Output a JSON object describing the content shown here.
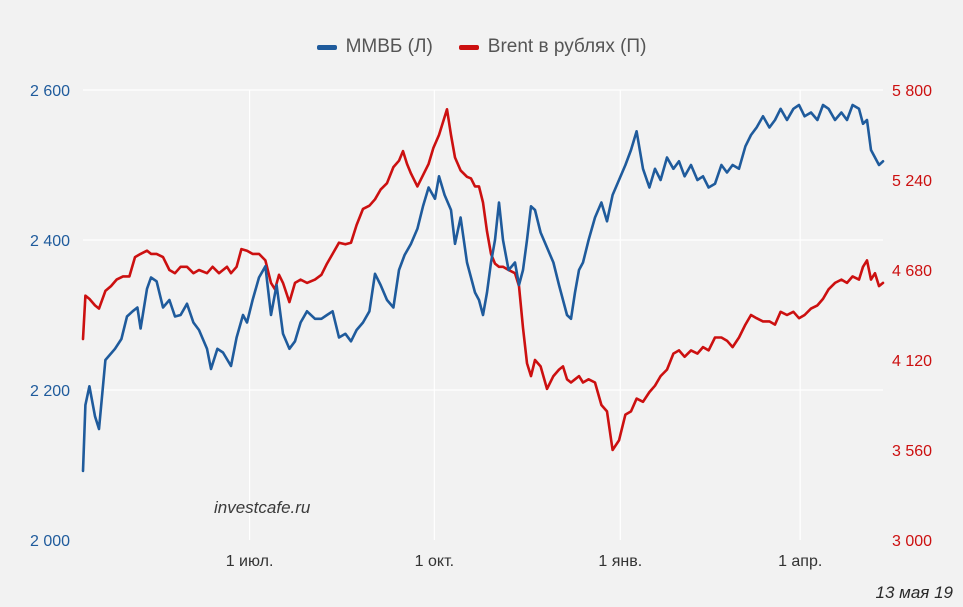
{
  "colors": {
    "background": "#f2f2f2",
    "micex": "#1f5b9c",
    "brent": "#cc1010",
    "grid": "#ffffff"
  },
  "footer": {
    "watermark": "investcafe.ru",
    "date": "13 мая 19"
  },
  "chart_data": {
    "type": "line",
    "legend_position": "top-center",
    "grid": true,
    "x_ticks": [
      "1 июл.",
      "1 окт.",
      "1 янв.",
      "1 апр."
    ],
    "x_tick_positions": [
      0.2082,
      0.4392,
      0.6716,
      0.8965
    ],
    "y_left": {
      "ticks": [
        "2 000",
        "2 200",
        "2 400",
        "2 600"
      ],
      "range": [
        2000,
        2600
      ]
    },
    "y_right": {
      "ticks": [
        "3 000",
        "3 560",
        "4 120",
        "4 680",
        "5 240",
        "5 800"
      ],
      "range": [
        3000,
        5800
      ]
    },
    "series": [
      {
        "name": "ММВБ (Л)",
        "axis": "left",
        "color": "#1f5b9c",
        "x": [
          0,
          0.003,
          0.008,
          0.015,
          0.02,
          0.028,
          0.04,
          0.048,
          0.055,
          0.062,
          0.068,
          0.072,
          0.08,
          0.085,
          0.092,
          0.1,
          0.108,
          0.115,
          0.122,
          0.13,
          0.138,
          0.145,
          0.155,
          0.16,
          0.168,
          0.175,
          0.185,
          0.192,
          0.2,
          0.205,
          0.212,
          0.22,
          0.228,
          0.235,
          0.242,
          0.25,
          0.258,
          0.265,
          0.272,
          0.28,
          0.29,
          0.298,
          0.305,
          0.312,
          0.32,
          0.328,
          0.335,
          0.342,
          0.35,
          0.358,
          0.365,
          0.372,
          0.38,
          0.388,
          0.395,
          0.402,
          0.41,
          0.418,
          0.425,
          0.432,
          0.44,
          0.445,
          0.452,
          0.46,
          0.465,
          0.472,
          0.48,
          0.485,
          0.49,
          0.495,
          0.5,
          0.505,
          0.51,
          0.515,
          0.52,
          0.525,
          0.532,
          0.54,
          0.545,
          0.55,
          0.555,
          0.56,
          0.565,
          0.572,
          0.58,
          0.588,
          0.595,
          0.6,
          0.605,
          0.61,
          0.615,
          0.62,
          0.625,
          0.632,
          0.64,
          0.648,
          0.655,
          0.662,
          0.67,
          0.678,
          0.685,
          0.692,
          0.7,
          0.708,
          0.715,
          0.722,
          0.73,
          0.738,
          0.745,
          0.752,
          0.76,
          0.768,
          0.775,
          0.782,
          0.79,
          0.798,
          0.805,
          0.812,
          0.82,
          0.828,
          0.835,
          0.842,
          0.85,
          0.858,
          0.865,
          0.872,
          0.88,
          0.888,
          0.895,
          0.902,
          0.91,
          0.918,
          0.925,
          0.932,
          0.94,
          0.948,
          0.955,
          0.962,
          0.97,
          0.975,
          0.98,
          0.985,
          0.99,
          0.995,
          1.0
        ],
        "values": [
          2092,
          2180,
          2205,
          2165,
          2148,
          2240,
          2255,
          2268,
          2298,
          2305,
          2310,
          2282,
          2335,
          2350,
          2345,
          2310,
          2320,
          2298,
          2300,
          2315,
          2290,
          2280,
          2255,
          2228,
          2255,
          2250,
          2232,
          2270,
          2300,
          2290,
          2320,
          2350,
          2365,
          2300,
          2340,
          2275,
          2255,
          2265,
          2290,
          2305,
          2295,
          2295,
          2300,
          2305,
          2270,
          2275,
          2265,
          2280,
          2290,
          2305,
          2355,
          2340,
          2320,
          2310,
          2360,
          2380,
          2395,
          2415,
          2445,
          2470,
          2455,
          2485,
          2460,
          2440,
          2395,
          2430,
          2370,
          2350,
          2330,
          2320,
          2300,
          2330,
          2370,
          2400,
          2450,
          2400,
          2360,
          2370,
          2340,
          2360,
          2400,
          2445,
          2440,
          2410,
          2390,
          2370,
          2340,
          2320,
          2300,
          2295,
          2330,
          2360,
          2370,
          2400,
          2430,
          2450,
          2425,
          2460,
          2480,
          2500,
          2520,
          2545,
          2495,
          2470,
          2495,
          2480,
          2510,
          2495,
          2505,
          2485,
          2500,
          2480,
          2485,
          2470,
          2475,
          2500,
          2490,
          2500,
          2495,
          2525,
          2540,
          2550,
          2565,
          2550,
          2560,
          2575,
          2560,
          2575,
          2580,
          2565,
          2570,
          2560,
          2580,
          2575,
          2560,
          2570,
          2560,
          2580,
          2575,
          2555,
          2560,
          2520,
          2510,
          2500,
          2505
        ]
      },
      {
        "name": "Brent в рублях (П)",
        "axis": "right",
        "color": "#cc1010",
        "x": [
          0,
          0.003,
          0.008,
          0.015,
          0.02,
          0.028,
          0.035,
          0.042,
          0.05,
          0.058,
          0.065,
          0.072,
          0.08,
          0.085,
          0.092,
          0.1,
          0.108,
          0.115,
          0.122,
          0.13,
          0.138,
          0.145,
          0.155,
          0.162,
          0.17,
          0.175,
          0.18,
          0.185,
          0.192,
          0.198,
          0.205,
          0.212,
          0.22,
          0.228,
          0.235,
          0.24,
          0.245,
          0.25,
          0.258,
          0.265,
          0.272,
          0.28,
          0.29,
          0.298,
          0.305,
          0.312,
          0.32,
          0.328,
          0.335,
          0.342,
          0.35,
          0.358,
          0.365,
          0.372,
          0.38,
          0.388,
          0.395,
          0.4,
          0.405,
          0.41,
          0.418,
          0.425,
          0.432,
          0.438,
          0.445,
          0.45,
          0.455,
          0.46,
          0.465,
          0.472,
          0.48,
          0.485,
          0.49,
          0.495,
          0.5,
          0.505,
          0.51,
          0.515,
          0.52,
          0.525,
          0.532,
          0.54,
          0.545,
          0.55,
          0.555,
          0.56,
          0.565,
          0.572,
          0.58,
          0.588,
          0.595,
          0.6,
          0.605,
          0.61,
          0.615,
          0.62,
          0.625,
          0.632,
          0.64,
          0.648,
          0.655,
          0.662,
          0.67,
          0.678,
          0.685,
          0.692,
          0.7,
          0.708,
          0.715,
          0.722,
          0.73,
          0.738,
          0.745,
          0.752,
          0.76,
          0.768,
          0.775,
          0.782,
          0.79,
          0.798,
          0.805,
          0.812,
          0.82,
          0.828,
          0.835,
          0.842,
          0.85,
          0.858,
          0.865,
          0.872,
          0.88,
          0.888,
          0.895,
          0.902,
          0.91,
          0.918,
          0.925,
          0.932,
          0.94,
          0.948,
          0.955,
          0.962,
          0.97,
          0.975,
          0.98,
          0.985,
          0.99,
          0.995,
          1.0
        ],
        "values": [
          4250,
          4520,
          4500,
          4460,
          4440,
          4550,
          4580,
          4620,
          4640,
          4640,
          4760,
          4780,
          4800,
          4780,
          4780,
          4760,
          4680,
          4660,
          4700,
          4700,
          4660,
          4680,
          4660,
          4700,
          4660,
          4680,
          4700,
          4660,
          4700,
          4810,
          4800,
          4780,
          4780,
          4740,
          4600,
          4560,
          4650,
          4600,
          4480,
          4600,
          4620,
          4600,
          4620,
          4650,
          4720,
          4780,
          4850,
          4840,
          4850,
          4960,
          5060,
          5080,
          5120,
          5180,
          5220,
          5320,
          5360,
          5420,
          5340,
          5280,
          5200,
          5270,
          5340,
          5440,
          5520,
          5600,
          5680,
          5520,
          5380,
          5300,
          5260,
          5250,
          5200,
          5200,
          5100,
          4920,
          4780,
          4720,
          4700,
          4700,
          4680,
          4660,
          4580,
          4320,
          4100,
          4020,
          4120,
          4080,
          3940,
          4020,
          4060,
          4080,
          4000,
          3980,
          4000,
          4020,
          3980,
          4000,
          3980,
          3840,
          3800,
          3560,
          3620,
          3780,
          3800,
          3880,
          3860,
          3920,
          3960,
          4020,
          4060,
          4160,
          4180,
          4140,
          4180,
          4160,
          4200,
          4180,
          4260,
          4260,
          4240,
          4200,
          4260,
          4340,
          4400,
          4380,
          4360,
          4360,
          4340,
          4420,
          4400,
          4420,
          4380,
          4400,
          4440,
          4460,
          4500,
          4560,
          4600,
          4620,
          4600,
          4640,
          4620,
          4700,
          4740,
          4620,
          4660,
          4580,
          4600
        ]
      }
    ]
  }
}
